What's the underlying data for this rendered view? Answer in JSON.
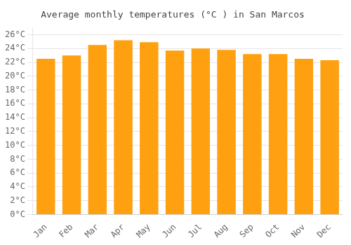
{
  "chart_data": {
    "type": "bar",
    "title": "Average monthly temperatures (°C ) in San Marcos",
    "categories": [
      "Jan",
      "Feb",
      "Mar",
      "Apr",
      "May",
      "Jun",
      "Jul",
      "Aug",
      "Sep",
      "Oct",
      "Nov",
      "Dec"
    ],
    "values": [
      22.5,
      23.0,
      24.5,
      25.2,
      24.9,
      23.7,
      24.0,
      23.8,
      23.2,
      23.2,
      22.5,
      22.3
    ],
    "color": "#FFA010",
    "ylim": [
      0,
      27
    ],
    "yticks": [
      {
        "value": 0,
        "label": "0°C"
      },
      {
        "value": 2,
        "label": "2°C"
      },
      {
        "value": 4,
        "label": "4°C"
      },
      {
        "value": 6,
        "label": "6°C"
      },
      {
        "value": 8,
        "label": "8°C"
      },
      {
        "value": 10,
        "label": "10°C"
      },
      {
        "value": 12,
        "label": "12°C"
      },
      {
        "value": 14,
        "label": "14°C"
      },
      {
        "value": 16,
        "label": "16°C"
      },
      {
        "value": 18,
        "label": "18°C"
      },
      {
        "value": 20,
        "label": "20°C"
      },
      {
        "value": 22,
        "label": "22°C"
      },
      {
        "value": 24,
        "label": "24°C"
      },
      {
        "value": 26,
        "label": "26°C"
      }
    ],
    "grid": true
  }
}
